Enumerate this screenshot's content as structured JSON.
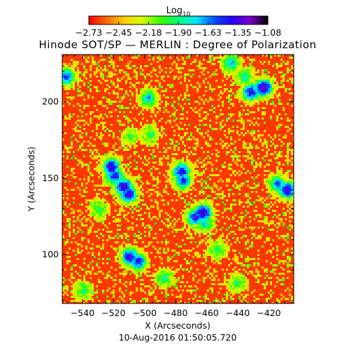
{
  "chart_data": {
    "type": "heatmap",
    "title": "Hinode SOT/SP — MERLIN : Degree of Polarization",
    "xlabel": "X (Arcseconds)",
    "ylabel": "Y (Arcseconds)",
    "timestamp": "10-Aug-2016 01:50:05.720",
    "xlim": [
      -553,
      -404
    ],
    "ylim": [
      68,
      231
    ],
    "x_ticks": [
      {
        "value": -540,
        "label": "−540"
      },
      {
        "value": -520,
        "label": "−520"
      },
      {
        "value": -500,
        "label": "−500"
      },
      {
        "value": -480,
        "label": "−480"
      },
      {
        "value": -460,
        "label": "−460"
      },
      {
        "value": -440,
        "label": "−440"
      },
      {
        "value": -420,
        "label": "−420"
      }
    ],
    "y_ticks": [
      {
        "value": 100,
        "label": "100"
      },
      {
        "value": 150,
        "label": "150"
      },
      {
        "value": 200,
        "label": "200"
      }
    ],
    "colorbar": {
      "title_base": "Log",
      "title_sub": "10",
      "range": [
        -2.73,
        -1.08
      ],
      "tick_labels": [
        "−2.73",
        "−2.45",
        "−2.18",
        "−1.90",
        "−1.63",
        "−1.35",
        "−1.08"
      ],
      "colormap": [
        "#ff0000",
        "#ff6a00",
        "#ffd200",
        "#d2ff00",
        "#3cff00",
        "#00ff78",
        "#00e6ff",
        "#0050ff",
        "#2800ff",
        "#7800c8",
        "#000000"
      ]
    },
    "background_level": "#ff3800",
    "active_patches": [
      {
        "x": -522,
        "y": 158,
        "level": 0.92
      },
      {
        "x": -520,
        "y": 152,
        "level": 0.85
      },
      {
        "x": -514,
        "y": 145,
        "level": 0.95
      },
      {
        "x": -511,
        "y": 140,
        "level": 0.9
      },
      {
        "x": -477,
        "y": 155,
        "level": 0.88
      },
      {
        "x": -476,
        "y": 149,
        "level": 0.8
      },
      {
        "x": -463,
        "y": 128,
        "level": 0.95
      },
      {
        "x": -468,
        "y": 125,
        "level": 0.85
      },
      {
        "x": -510,
        "y": 99,
        "level": 0.9
      },
      {
        "x": -505,
        "y": 96,
        "level": 0.85
      },
      {
        "x": -432,
        "y": 207,
        "level": 0.88
      },
      {
        "x": -424,
        "y": 210,
        "level": 0.95
      },
      {
        "x": -436,
        "y": 217,
        "level": 0.6
      },
      {
        "x": -409,
        "y": 143,
        "level": 0.92
      },
      {
        "x": -415,
        "y": 147,
        "level": 0.75
      },
      {
        "x": -551,
        "y": 217,
        "level": 0.8
      },
      {
        "x": -445,
        "y": 226,
        "level": 0.7
      },
      {
        "x": -498,
        "y": 203,
        "level": 0.7
      },
      {
        "x": -497,
        "y": 179,
        "level": 0.55
      },
      {
        "x": -462,
        "y": 121,
        "level": 0.65
      },
      {
        "x": -441,
        "y": 82,
        "level": 0.55
      },
      {
        "x": -540,
        "y": 77,
        "level": 0.55
      },
      {
        "x": -488,
        "y": 85,
        "level": 0.6
      },
      {
        "x": -454,
        "y": 104,
        "level": 0.55
      },
      {
        "x": -510,
        "y": 178,
        "level": 0.5
      },
      {
        "x": -530,
        "y": 130,
        "level": 0.55
      }
    ]
  }
}
